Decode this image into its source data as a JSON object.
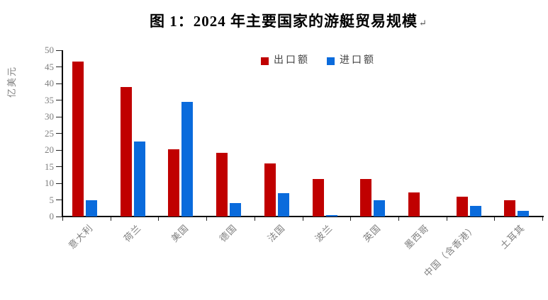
{
  "title": {
    "text": "图 1：2024 年主要国家的游艇贸易规模",
    "paragraph_mark": "↵"
  },
  "chart_data": {
    "type": "bar",
    "title": "图 1：2024 年主要国家的游艇贸易规模",
    "ylabel": "亿美元",
    "xlabel": "",
    "ylim": [
      0,
      50
    ],
    "ytick_step": 5,
    "grid": false,
    "legend_position": "top-center-inside",
    "categories": [
      "意大利",
      "荷兰",
      "美国",
      "德国",
      "法国",
      "波兰",
      "英国",
      "墨西哥",
      "中国（含香港）",
      "土耳其"
    ],
    "series": [
      {
        "name": "出口额",
        "color": "#c00000",
        "values": [
          46.5,
          39.0,
          20.2,
          19.2,
          16.0,
          11.2,
          11.2,
          7.2,
          6.0,
          4.8
        ]
      },
      {
        "name": "进口额",
        "color": "#0a6bdc",
        "values": [
          5.0,
          22.5,
          34.5,
          4.0,
          7.0,
          0.5,
          5.0,
          0,
          3.1,
          1.7
        ]
      }
    ]
  },
  "colors": {
    "export_bar": "#c00000",
    "import_bar": "#0a6bdc",
    "axis": "#000000",
    "tick_text": "#7f7f7f",
    "legend_text": "#404040"
  }
}
